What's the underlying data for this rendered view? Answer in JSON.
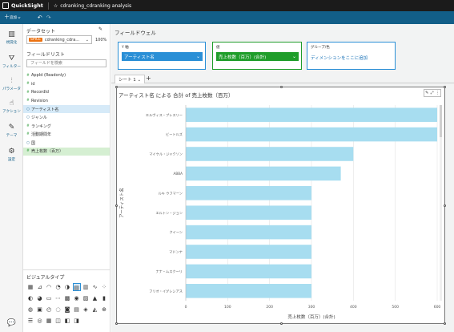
{
  "app": {
    "brand": "QuickSight",
    "analysis_title": "cdranking_cdranking analysis"
  },
  "toolbar": {
    "add_label": "追加",
    "undo_icon": "undo-icon",
    "redo_icon": "redo-icon"
  },
  "nav": [
    {
      "label": "視覚化",
      "icon": "visualize-icon"
    },
    {
      "label": "フィルター",
      "icon": "filter-icon"
    },
    {
      "label": "パラメータ",
      "icon": "parameter-icon"
    },
    {
      "label": "アクション",
      "icon": "action-icon"
    },
    {
      "label": "テーマ",
      "icon": "theme-icon"
    },
    {
      "label": "設定",
      "icon": "settings-icon"
    }
  ],
  "data_panel": {
    "dataset_label": "データセット",
    "spice_badge": "SPICE",
    "dataset_name": "cdranking_cdra...",
    "spice_percent": "100%",
    "field_list_label": "フィールドリスト",
    "field_search_placeholder": "フィールドを検索",
    "fields": [
      {
        "name": "AppId (Readonly)",
        "type": "#",
        "selected": ""
      },
      {
        "name": "id",
        "type": "#",
        "selected": ""
      },
      {
        "name": "RecordId",
        "type": "#",
        "selected": ""
      },
      {
        "name": "Revision",
        "type": "#",
        "selected": ""
      },
      {
        "name": "アーティスト名",
        "type": "○",
        "selected": "blue"
      },
      {
        "name": "ジャンル",
        "type": "○",
        "selected": ""
      },
      {
        "name": "ランキング",
        "type": "#",
        "selected": ""
      },
      {
        "name": "活動期間年",
        "type": "#",
        "selected": ""
      },
      {
        "name": "国",
        "type": "○",
        "selected": ""
      },
      {
        "name": "売上枚数（百万）",
        "type": "#",
        "selected": "green"
      }
    ],
    "visual_types_label": "ビジュアルタイプ"
  },
  "field_wells": {
    "label": "フィールドウェル",
    "y_axis": {
      "title": "Y 軸",
      "value": "アーティスト名",
      "color": "#2a8fd6"
    },
    "value": {
      "title": "値",
      "value": "売上枚数（百万）(合計)",
      "color": "#1f9d2a"
    },
    "group": {
      "title": "グループ/色",
      "add_text": "ディメンションをここに追加"
    }
  },
  "sheet": {
    "tab_label": "シート 1",
    "add_icon": "plus-icon"
  },
  "chart_data": {
    "type": "bar",
    "orientation": "horizontal",
    "title": "アーティスト名 による 合計 of 売上枚数（百万）",
    "xlabel": "売上枚数（百万）(合計)",
    "ylabel": "アーティスト名",
    "categories": [
      "エルヴィス・プレスリー",
      "ビートルズ",
      "マイケル・ジャクソン",
      "ABBA",
      "ルキ ウフマーン",
      "エルトン・ジョン",
      "クイーン",
      "マドンナ",
      "ナナ・ムスクーリ",
      "フリオ・イグレシアス"
    ],
    "values": [
      600,
      600,
      400,
      370,
      300,
      300,
      300,
      300,
      300,
      300
    ],
    "xlim": [
      0,
      600
    ],
    "x_ticks": [
      "0",
      "100",
      "200",
      "300",
      "400",
      "500",
      "600"
    ],
    "bar_color": "#a7ddf0",
    "grid": true
  }
}
